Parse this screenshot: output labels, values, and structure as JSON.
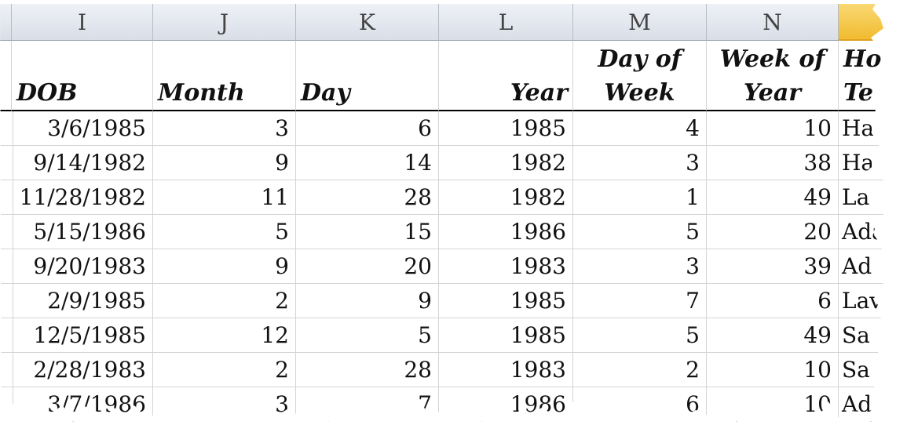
{
  "column_letters": [
    "I",
    "J",
    "K",
    "L",
    "M",
    "N"
  ],
  "headers": [
    [
      "DOB"
    ],
    [
      "Month"
    ],
    [
      "Day"
    ],
    [
      "Year"
    ],
    [
      "Day of",
      "Week"
    ],
    [
      "Week of",
      "Year"
    ],
    [
      "Ho",
      "Te"
    ]
  ],
  "rows": [
    [
      "3/6/1985",
      3,
      6,
      1985,
      4,
      10,
      "Ha"
    ],
    [
      "9/14/1982",
      9,
      14,
      1982,
      3,
      38,
      "Ha"
    ],
    [
      "11/28/1982",
      11,
      28,
      1982,
      1,
      49,
      "La"
    ],
    [
      "5/15/1986",
      5,
      15,
      1986,
      5,
      20,
      "Ada"
    ],
    [
      "9/20/1983",
      9,
      20,
      1983,
      3,
      39,
      "Ad"
    ],
    [
      "2/9/1985",
      2,
      9,
      1985,
      7,
      6,
      "Lav"
    ],
    [
      "12/5/1985",
      12,
      5,
      1985,
      5,
      49,
      "Sa"
    ],
    [
      "2/28/1983",
      2,
      28,
      1983,
      2,
      10,
      "Sa"
    ],
    [
      "3/7/1986",
      3,
      7,
      1986,
      6,
      10,
      "Ad"
    ]
  ]
}
